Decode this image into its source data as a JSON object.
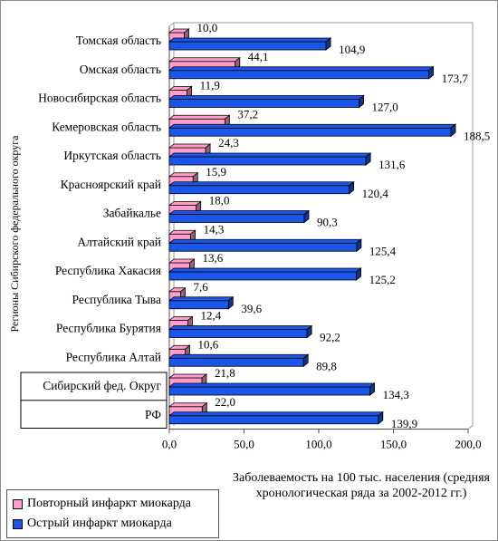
{
  "chart_data": {
    "type": "bar",
    "orientation": "horizontal",
    "categories": [
      "Томская область",
      "Омская область",
      "Новосибирская область",
      "Кемеровская область",
      "Иркутская область",
      "Красноярский край",
      "Забайкалье",
      "Алтайский край",
      "Республика Хакасия",
      "Республика Тыва",
      "Республика Бурятия",
      "Республика Алтай",
      "Сибирский фед. Округ",
      "РФ"
    ],
    "series": [
      {
        "name": "Повторный инфаркт миокарда",
        "color": "#ff9ecb",
        "values": [
          10.0,
          44.1,
          11.9,
          37.2,
          24.3,
          15.9,
          18.0,
          14.3,
          13.6,
          7.6,
          12.4,
          10.6,
          21.8,
          22.0
        ],
        "labels": [
          "10,0",
          "44,1",
          "11,9",
          "37,2",
          "24,3",
          "15,9",
          "18,0",
          "14,3",
          "13,6",
          "7,6",
          "12,4",
          "10,6",
          "21,8",
          "22,0"
        ]
      },
      {
        "name": "Острый инфаркт миокарда",
        "color": "#1a56e8",
        "values": [
          104.9,
          173.7,
          127.0,
          188.5,
          131.6,
          120.4,
          90.3,
          125.4,
          125.2,
          39.6,
          92.2,
          89.8,
          134.3,
          139.9
        ],
        "labels": [
          "104,9",
          "173,7",
          "127,0",
          "188,5",
          "131,6",
          "120,4",
          "90,3",
          "125,4",
          "125,2",
          "39,6",
          "92,2",
          "89,8",
          "134,3",
          "139,9"
        ]
      }
    ],
    "xlim": [
      0,
      200
    ],
    "xticks": [
      "0,0",
      "50,0",
      "100,0",
      "150,0",
      "200,0"
    ],
    "xlabel": "Заболеваемость на 100 тыс. населения (средняя хронологическая ряда за 2002-2012 гг.)",
    "ylabel": "Регионы Сибирского федерального округа",
    "grid": false,
    "legend_position": "bottom-left"
  },
  "legend": {
    "repeat": "Повторный инфаркт миокарда",
    "acute": "Острый инфаркт миокарда"
  },
  "axis": {
    "xlabel_line1": "Заболеваемость на 100 тыс. населения (средняя",
    "xlabel_line2": "хронологическая ряда за 2002-2012 гг.)",
    "ylabel": "Регионы Сибирского федерального округа"
  }
}
